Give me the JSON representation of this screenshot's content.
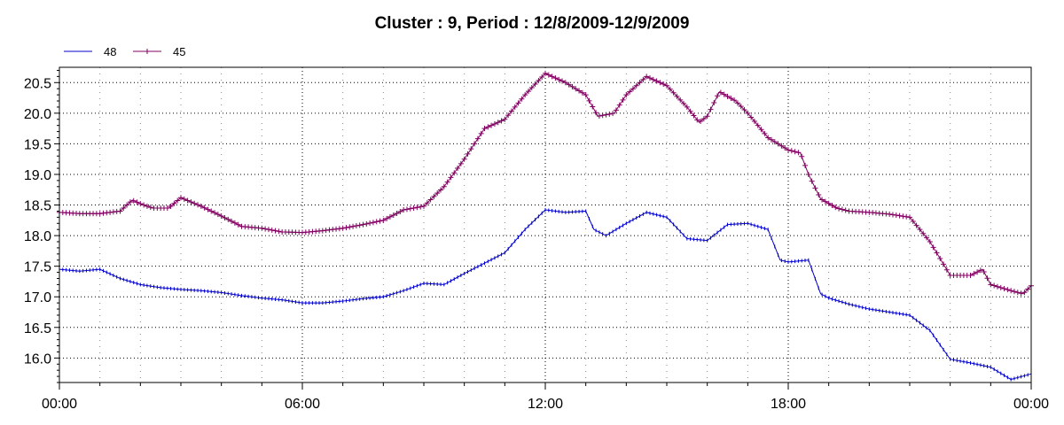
{
  "chart_data": {
    "type": "line",
    "title": "Cluster : 9, Period : 12/8/2009-12/9/2009",
    "xlabel": "",
    "ylabel": "",
    "x_ticks": [
      "00:00",
      "06:00",
      "12:00",
      "18:00",
      "00:00"
    ],
    "x_tick_hours": [
      0,
      6,
      12,
      18,
      24
    ],
    "xlim_hours": [
      0,
      24
    ],
    "y_ticks": [
      "16.0",
      "16.5",
      "17.0",
      "17.5",
      "18.0",
      "18.5",
      "19.0",
      "19.5",
      "20.0",
      "20.5"
    ],
    "ylim": [
      15.6,
      20.75
    ],
    "grid": "dotted",
    "legend_placement": "top-left",
    "series": [
      {
        "name": "48",
        "color": "#0000cc",
        "marker": "tick",
        "points": [
          [
            0.0,
            17.45
          ],
          [
            0.5,
            17.42
          ],
          [
            1.0,
            17.45
          ],
          [
            1.5,
            17.3
          ],
          [
            2.0,
            17.2
          ],
          [
            2.5,
            17.15
          ],
          [
            3.0,
            17.12
          ],
          [
            3.5,
            17.1
          ],
          [
            4.0,
            17.07
          ],
          [
            4.5,
            17.02
          ],
          [
            5.0,
            16.98
          ],
          [
            5.5,
            16.95
          ],
          [
            6.0,
            16.9
          ],
          [
            6.5,
            16.9
          ],
          [
            7.0,
            16.93
          ],
          [
            7.5,
            16.97
          ],
          [
            8.0,
            17.0
          ],
          [
            8.5,
            17.1
          ],
          [
            9.0,
            17.22
          ],
          [
            9.5,
            17.2
          ],
          [
            10.0,
            17.38
          ],
          [
            10.5,
            17.55
          ],
          [
            11.0,
            17.72
          ],
          [
            11.5,
            18.1
          ],
          [
            12.0,
            18.42
          ],
          [
            12.5,
            18.38
          ],
          [
            13.0,
            18.4
          ],
          [
            13.2,
            18.1
          ],
          [
            13.5,
            18.0
          ],
          [
            14.0,
            18.2
          ],
          [
            14.5,
            18.38
          ],
          [
            15.0,
            18.3
          ],
          [
            15.5,
            17.95
          ],
          [
            16.0,
            17.92
          ],
          [
            16.5,
            18.18
          ],
          [
            17.0,
            18.2
          ],
          [
            17.5,
            18.1
          ],
          [
            17.8,
            17.6
          ],
          [
            18.0,
            17.57
          ],
          [
            18.5,
            17.6
          ],
          [
            18.8,
            17.05
          ],
          [
            19.0,
            16.98
          ],
          [
            19.5,
            16.88
          ],
          [
            20.0,
            16.8
          ],
          [
            20.5,
            16.75
          ],
          [
            21.0,
            16.7
          ],
          [
            21.5,
            16.45
          ],
          [
            22.0,
            15.98
          ],
          [
            22.5,
            15.92
          ],
          [
            23.0,
            15.85
          ],
          [
            23.5,
            15.65
          ],
          [
            24.0,
            15.74
          ]
        ]
      },
      {
        "name": "45",
        "color": "#800060",
        "marker": "plus",
        "points": [
          [
            0.0,
            18.38
          ],
          [
            0.5,
            18.36
          ],
          [
            1.0,
            18.36
          ],
          [
            1.5,
            18.4
          ],
          [
            1.8,
            18.58
          ],
          [
            2.0,
            18.52
          ],
          [
            2.3,
            18.45
          ],
          [
            2.7,
            18.45
          ],
          [
            3.0,
            18.62
          ],
          [
            3.5,
            18.48
          ],
          [
            4.0,
            18.32
          ],
          [
            4.5,
            18.15
          ],
          [
            5.0,
            18.12
          ],
          [
            5.5,
            18.06
          ],
          [
            6.0,
            18.05
          ],
          [
            6.5,
            18.08
          ],
          [
            7.0,
            18.12
          ],
          [
            7.5,
            18.18
          ],
          [
            8.0,
            18.25
          ],
          [
            8.5,
            18.42
          ],
          [
            9.0,
            18.48
          ],
          [
            9.5,
            18.8
          ],
          [
            10.0,
            19.25
          ],
          [
            10.5,
            19.75
          ],
          [
            11.0,
            19.9
          ],
          [
            11.5,
            20.3
          ],
          [
            12.0,
            20.65
          ],
          [
            12.5,
            20.5
          ],
          [
            13.0,
            20.3
          ],
          [
            13.3,
            19.95
          ],
          [
            13.7,
            20.0
          ],
          [
            14.0,
            20.3
          ],
          [
            14.5,
            20.6
          ],
          [
            15.0,
            20.45
          ],
          [
            15.5,
            20.1
          ],
          [
            15.8,
            19.85
          ],
          [
            16.0,
            19.95
          ],
          [
            16.3,
            20.35
          ],
          [
            16.7,
            20.2
          ],
          [
            17.0,
            20.0
          ],
          [
            17.5,
            19.6
          ],
          [
            18.0,
            19.4
          ],
          [
            18.3,
            19.35
          ],
          [
            18.5,
            19.0
          ],
          [
            18.8,
            18.6
          ],
          [
            19.2,
            18.45
          ],
          [
            19.5,
            18.4
          ],
          [
            20.0,
            18.38
          ],
          [
            20.5,
            18.35
          ],
          [
            21.0,
            18.3
          ],
          [
            21.5,
            17.9
          ],
          [
            22.0,
            17.35
          ],
          [
            22.5,
            17.35
          ],
          [
            22.8,
            17.45
          ],
          [
            23.0,
            17.2
          ],
          [
            23.5,
            17.1
          ],
          [
            23.8,
            17.05
          ],
          [
            24.0,
            17.18
          ]
        ]
      }
    ]
  }
}
